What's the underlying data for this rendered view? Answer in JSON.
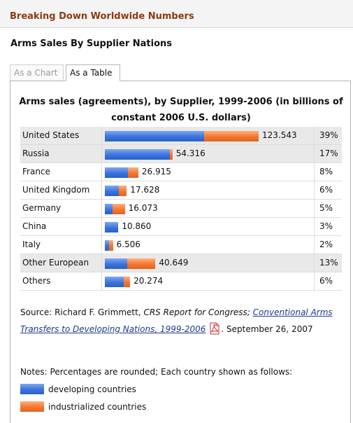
{
  "header": {
    "title": "Breaking Down Worldwide Numbers"
  },
  "section_title": "Arms Sales By Supplier Nations",
  "tabs": [
    {
      "label": "As a Chart",
      "active": false
    },
    {
      "label": "As a Table",
      "active": true
    }
  ],
  "table": {
    "title": "Arms sales (agreements), by Supplier, 1999-2006 (in billions of constant 2006 U.S. dollars)",
    "rows": [
      {
        "country": "United States",
        "value": "123.543",
        "percent": "39%",
        "developing": 0.646,
        "industrialized": 0.354,
        "highlight": true
      },
      {
        "country": "Russia",
        "value": "54.316",
        "percent": "17%",
        "developing": 0.96,
        "industrialized": 0.04,
        "highlight": true
      },
      {
        "country": "France",
        "value": "26.915",
        "percent": "8%",
        "developing": 0.68,
        "industrialized": 0.32,
        "highlight": false
      },
      {
        "country": "United Kingdom",
        "value": "17.628",
        "percent": "6%",
        "developing": 0.65,
        "industrialized": 0.35,
        "highlight": false
      },
      {
        "country": "Germany",
        "value": "16.073",
        "percent": "5%",
        "developing": 0.37,
        "industrialized": 0.63,
        "highlight": false
      },
      {
        "country": "China",
        "value": "10.860",
        "percent": "3%",
        "developing": 1.0,
        "industrialized": 0.0,
        "highlight": false
      },
      {
        "country": "Italy",
        "value": "6.506",
        "percent": "2%",
        "developing": 0.5,
        "industrialized": 0.5,
        "highlight": false
      },
      {
        "country": "Other European",
        "value": "40.649",
        "percent": "13%",
        "developing": 0.44,
        "industrialized": 0.56,
        "highlight": true
      },
      {
        "country": "Others",
        "value": "20.274",
        "percent": "6%",
        "developing": 0.75,
        "industrialized": 0.25,
        "highlight": false
      }
    ]
  },
  "source": {
    "prefix": "Source: Richard F. Grimmett, ",
    "publication": "CRS Report for Congress;",
    "link_text": "Conventional Arms Transfers to Developing Nations, 1999-2006",
    "suffix": ". September 26, 2007",
    "pdf_icon": "pdf-icon"
  },
  "notes": {
    "text": "Notes: Percentages are rounded; Each country shown as follows:",
    "legend": [
      {
        "label": "developing countries",
        "color": "#3b73dd"
      },
      {
        "label": "industrialized countries",
        "color": "#f3762e"
      }
    ]
  },
  "colors": {
    "developing": "#3b73dd",
    "industrialized": "#f3762e",
    "header_title": "#8b3a14"
  }
}
